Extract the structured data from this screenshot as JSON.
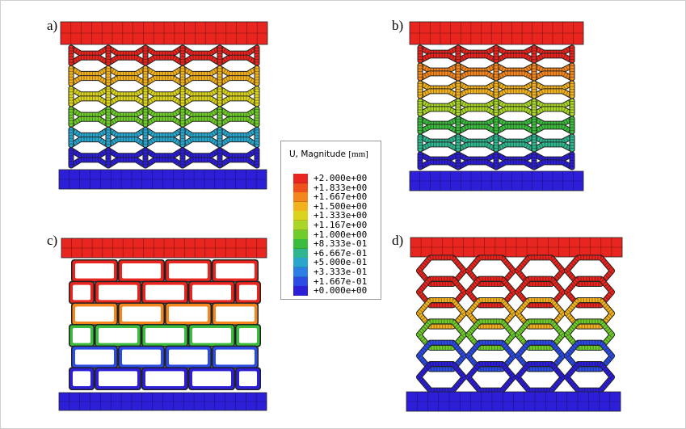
{
  "panels": [
    {
      "label": "a)"
    },
    {
      "label": "b)"
    },
    {
      "label": "c)"
    },
    {
      "label": "d)"
    }
  ],
  "legend": {
    "variable": "U, Magnitude",
    "unit": "[mm]",
    "entries": [
      {
        "value": "+2.000e+00",
        "color": "#e8251e"
      },
      {
        "value": "+1.833e+00",
        "color": "#ee4f1c"
      },
      {
        "value": "+1.667e+00",
        "color": "#f3861e"
      },
      {
        "value": "+1.500e+00",
        "color": "#f2b21f"
      },
      {
        "value": "+1.333e+00",
        "color": "#dbd41f"
      },
      {
        "value": "+1.167e+00",
        "color": "#a9d628"
      },
      {
        "value": "+1.000e+00",
        "color": "#6fcc2c"
      },
      {
        "value": "+8.333e-01",
        "color": "#3cbc3e"
      },
      {
        "value": "+6.667e-01",
        "color": "#2fb68f"
      },
      {
        "value": "+5.000e-01",
        "color": "#2aa6cc"
      },
      {
        "value": "+3.333e-01",
        "color": "#2c7ee4"
      },
      {
        "value": "+1.667e-01",
        "color": "#2d4ce6"
      },
      {
        "value": "+0.000e+00",
        "color": "#2d1fd8"
      }
    ]
  }
}
